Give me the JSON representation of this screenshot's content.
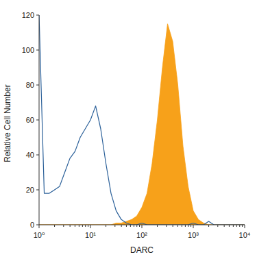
{
  "chart_data": {
    "type": "line",
    "x_label": "DARC",
    "y_label": "Relative Cell Number",
    "log": "x",
    "x": [
      1,
      1.26,
      1.58,
      2,
      2.51,
      3.16,
      3.98,
      5.01,
      6.31,
      7.94,
      10,
      12.6,
      15.8,
      20,
      25.1,
      31.6,
      39.8,
      50.1,
      63.1,
      79.4,
      100,
      126,
      158,
      200,
      251,
      316,
      398,
      501,
      631,
      794,
      1000,
      1259,
      1585,
      1995,
      2512,
      3162,
      3981,
      5012,
      6310,
      7943,
      10000
    ],
    "series": [
      {
        "type": "line",
        "color": "#2b6099",
        "values": [
          120,
          18,
          18,
          20,
          22,
          30,
          38,
          42,
          50,
          55,
          60,
          68,
          55,
          35,
          18,
          8,
          3,
          1,
          0,
          0,
          1,
          0,
          0,
          0,
          0,
          0,
          0,
          0,
          0,
          0,
          1,
          0,
          0,
          2,
          0,
          0,
          0,
          0,
          0,
          0,
          0
        ]
      },
      {
        "type": "area",
        "color": "#f7a11a",
        "values": [
          0,
          0,
          0,
          0,
          0,
          0,
          0,
          0,
          0,
          0,
          0,
          0,
          0,
          0,
          0,
          1,
          1,
          2,
          3,
          5,
          10,
          18,
          35,
          60,
          90,
          115,
          105,
          80,
          45,
          22,
          8,
          3,
          1,
          0,
          0,
          0,
          0,
          0,
          0,
          0,
          0
        ]
      }
    ],
    "xlim": [
      1,
      10000
    ],
    "xticks": [
      {
        "value": 1,
        "label": "10⁰"
      },
      {
        "value": 10,
        "label": "10¹"
      },
      {
        "value": 100,
        "label": "10²"
      },
      {
        "value": 1000,
        "label": "10³"
      },
      {
        "value": 10000,
        "label": "10⁴"
      }
    ],
    "ylim": [
      0,
      120
    ],
    "yticks": [
      0,
      20,
      40,
      60,
      80,
      100,
      120
    ]
  }
}
